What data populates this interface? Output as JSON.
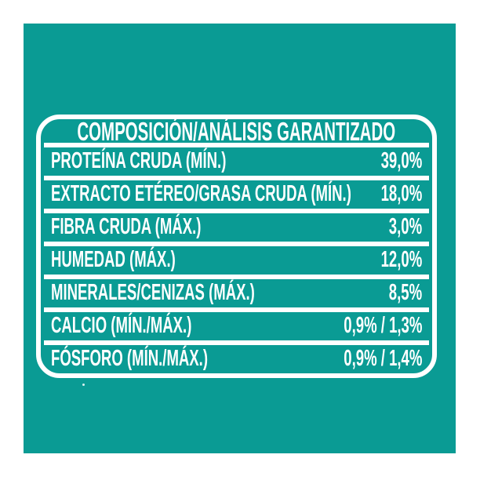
{
  "colors": {
    "page_background": "#ffffff",
    "panel_teal": "#0a9b94",
    "text_white": "#ffffff"
  },
  "label": {
    "title": "COMPOSICIÓN/ANÁLISIS GARANTIZADO",
    "rows": [
      {
        "label": "PROTEÍNA CRUDA (MÍN.)",
        "value": "39,0%"
      },
      {
        "label": "EXTRACTO ETÉREO/GRASA CRUDA (MÍN.)",
        "value": "18,0%"
      },
      {
        "label": "FIBRA CRUDA (MÁX.)",
        "value": "3,0%"
      },
      {
        "label": "HUMEDAD (MÁX.)",
        "value": "12,0%"
      },
      {
        "label": "MINERALES/CENIZAS (MÁX.)",
        "value": "8,5%"
      },
      {
        "label": "CALCIO (MÍN./MÁX.)",
        "value": "0,9% / 1,3%"
      },
      {
        "label": "FÓSFORO (MÍN./MÁX.)",
        "value": "0,9% / 1,4%"
      }
    ]
  }
}
